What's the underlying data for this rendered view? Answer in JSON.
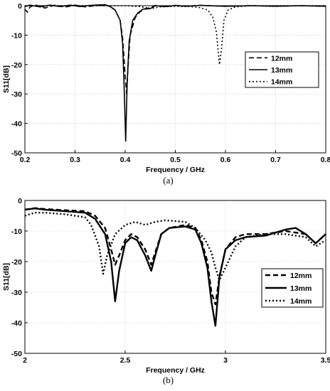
{
  "chart_data": [
    {
      "type": "line",
      "caption": "(a)",
      "xlabel": "Frequency / GHz",
      "ylabel": "S11[dB]",
      "xlim": [
        0.2,
        0.8
      ],
      "ylim": [
        -50,
        0
      ],
      "xticks": [
        0.2,
        0.3,
        0.4,
        0.5,
        0.6,
        0.7,
        0.8
      ],
      "yticks": [
        -50,
        -40,
        -30,
        -20,
        -10,
        0
      ],
      "xticklabels": [
        "0.2",
        "0.3",
        "0.4",
        "0.5",
        "0.6",
        "0.7",
        "0.8"
      ],
      "yticklabels": [
        "-50",
        "-40",
        "-30",
        "-20",
        "-10",
        "0"
      ],
      "grid": true,
      "legend": "right",
      "series": [
        {
          "name": "12mm",
          "style": "dashed",
          "points": [
            [
              0.2,
              -1.2
            ],
            [
              0.205,
              -2.2
            ],
            [
              0.21,
              -0.5
            ],
            [
              0.22,
              0.3
            ],
            [
              0.24,
              -0.8
            ],
            [
              0.26,
              0.2
            ],
            [
              0.28,
              -0.5
            ],
            [
              0.3,
              0.2
            ],
            [
              0.32,
              -0.4
            ],
            [
              0.34,
              0.0
            ],
            [
              0.36,
              0.3
            ],
            [
              0.37,
              -0.2
            ],
            [
              0.38,
              -1.5
            ],
            [
              0.39,
              -5
            ],
            [
              0.395,
              -11
            ],
            [
              0.4,
              -24
            ],
            [
              0.403,
              -30
            ],
            [
              0.406,
              -20
            ],
            [
              0.41,
              -10
            ],
            [
              0.42,
              -4
            ],
            [
              0.43,
              -2
            ],
            [
              0.44,
              -1
            ],
            [
              0.45,
              -0.7
            ],
            [
              0.46,
              0.1
            ],
            [
              0.48,
              -0.4
            ],
            [
              0.5,
              0.1
            ],
            [
              0.52,
              -0.2
            ],
            [
              0.55,
              0.1
            ],
            [
              0.6,
              -0.2
            ],
            [
              0.65,
              0.0
            ],
            [
              0.7,
              -0.2
            ],
            [
              0.75,
              0.0
            ],
            [
              0.8,
              -0.2
            ]
          ]
        },
        {
          "name": "13mm",
          "style": "solid",
          "points": [
            [
              0.2,
              -0.3
            ],
            [
              0.21,
              0.2
            ],
            [
              0.23,
              -0.4
            ],
            [
              0.25,
              0.2
            ],
            [
              0.27,
              -0.3
            ],
            [
              0.29,
              0.2
            ],
            [
              0.31,
              -0.3
            ],
            [
              0.33,
              0.1
            ],
            [
              0.35,
              0.3
            ],
            [
              0.36,
              0.3
            ],
            [
              0.37,
              -0.3
            ],
            [
              0.38,
              -1.5
            ],
            [
              0.39,
              -5
            ],
            [
              0.395,
              -13
            ],
            [
              0.398,
              -28
            ],
            [
              0.401,
              -46
            ],
            [
              0.404,
              -26
            ],
            [
              0.408,
              -12
            ],
            [
              0.415,
              -5
            ],
            [
              0.425,
              -2.5
            ],
            [
              0.435,
              -1.2
            ],
            [
              0.45,
              -1.0
            ],
            [
              0.46,
              0.0
            ],
            [
              0.48,
              -0.3
            ],
            [
              0.5,
              0.1
            ],
            [
              0.52,
              -0.2
            ],
            [
              0.55,
              0.1
            ],
            [
              0.6,
              -0.2
            ],
            [
              0.65,
              0.0
            ],
            [
              0.7,
              -0.2
            ],
            [
              0.75,
              0.0
            ],
            [
              0.8,
              -0.2
            ]
          ]
        },
        {
          "name": "14mm",
          "style": "dotted",
          "points": [
            [
              0.2,
              0.0
            ],
            [
              0.25,
              0.0
            ],
            [
              0.3,
              0.0
            ],
            [
              0.35,
              0.0
            ],
            [
              0.4,
              0.0
            ],
            [
              0.43,
              -0.3
            ],
            [
              0.45,
              -1.0
            ],
            [
              0.47,
              -0.4
            ],
            [
              0.5,
              -0.2
            ],
            [
              0.53,
              -0.3
            ],
            [
              0.55,
              -0.7
            ],
            [
              0.565,
              -1.5
            ],
            [
              0.575,
              -4
            ],
            [
              0.582,
              -9
            ],
            [
              0.588,
              -20
            ],
            [
              0.592,
              -15
            ],
            [
              0.597,
              -5
            ],
            [
              0.605,
              -1.5
            ],
            [
              0.62,
              -0.4
            ],
            [
              0.65,
              0.0
            ],
            [
              0.7,
              0.0
            ],
            [
              0.75,
              0.0
            ],
            [
              0.8,
              0.0
            ]
          ]
        }
      ]
    },
    {
      "type": "line",
      "caption": "(b)",
      "xlabel": "Frequency / GHz",
      "ylabel": "S11[dB]",
      "xlim": [
        2,
        3.5
      ],
      "ylim": [
        -50,
        0
      ],
      "xticks": [
        2,
        2.5,
        3,
        3.5
      ],
      "yticks": [
        -50,
        -40,
        -30,
        -20,
        -10,
        0
      ],
      "xticklabels": [
        "2",
        "2.5",
        "3",
        "3.5"
      ],
      "yticklabels": [
        "-50",
        "-40",
        "-30",
        "-20",
        "-10",
        "0"
      ],
      "grid": true,
      "legend": "bottom-right",
      "series": [
        {
          "name": "12mm",
          "style": "dashed",
          "points": [
            [
              2.0,
              -3
            ],
            [
              2.05,
              -2.5
            ],
            [
              2.1,
              -2.8
            ],
            [
              2.2,
              -3.2
            ],
            [
              2.3,
              -3.5
            ],
            [
              2.35,
              -5
            ],
            [
              2.4,
              -9
            ],
            [
              2.43,
              -16
            ],
            [
              2.45,
              -21
            ],
            [
              2.47,
              -18
            ],
            [
              2.5,
              -13
            ],
            [
              2.53,
              -11
            ],
            [
              2.56,
              -12
            ],
            [
              2.6,
              -16
            ],
            [
              2.63,
              -21
            ],
            [
              2.65,
              -17
            ],
            [
              2.68,
              -11
            ],
            [
              2.72,
              -9
            ],
            [
              2.8,
              -8
            ],
            [
              2.85,
              -9
            ],
            [
              2.88,
              -13
            ],
            [
              2.91,
              -20
            ],
            [
              2.93,
              -30
            ],
            [
              2.95,
              -34
            ],
            [
              2.97,
              -25
            ],
            [
              3.0,
              -16
            ],
            [
              3.05,
              -12
            ],
            [
              3.1,
              -11
            ],
            [
              3.2,
              -11
            ],
            [
              3.3,
              -10
            ],
            [
              3.4,
              -11
            ],
            [
              3.45,
              -14
            ],
            [
              3.5,
              -11
            ]
          ]
        },
        {
          "name": "13mm",
          "style": "solid",
          "points": [
            [
              2.0,
              -3
            ],
            [
              2.05,
              -2.6
            ],
            [
              2.1,
              -3
            ],
            [
              2.2,
              -3.5
            ],
            [
              2.3,
              -4
            ],
            [
              2.35,
              -6
            ],
            [
              2.4,
              -11
            ],
            [
              2.43,
              -20
            ],
            [
              2.45,
              -33
            ],
            [
              2.47,
              -23
            ],
            [
              2.5,
              -14
            ],
            [
              2.53,
              -12
            ],
            [
              2.56,
              -13
            ],
            [
              2.6,
              -18
            ],
            [
              2.63,
              -23
            ],
            [
              2.65,
              -18
            ],
            [
              2.68,
              -11
            ],
            [
              2.72,
              -9
            ],
            [
              2.8,
              -8.5
            ],
            [
              2.85,
              -9.5
            ],
            [
              2.88,
              -14
            ],
            [
              2.91,
              -22
            ],
            [
              2.93,
              -33
            ],
            [
              2.95,
              -41
            ],
            [
              2.97,
              -25
            ],
            [
              3.0,
              -16
            ],
            [
              3.05,
              -13
            ],
            [
              3.1,
              -12
            ],
            [
              3.2,
              -11.5
            ],
            [
              3.3,
              -9.5
            ],
            [
              3.35,
              -9
            ],
            [
              3.4,
              -11
            ],
            [
              3.45,
              -14
            ],
            [
              3.5,
              -11
            ]
          ]
        },
        {
          "name": "14mm",
          "style": "dotted",
          "points": [
            [
              2.0,
              -5
            ],
            [
              2.05,
              -4
            ],
            [
              2.1,
              -4
            ],
            [
              2.2,
              -4.5
            ],
            [
              2.3,
              -5.5
            ],
            [
              2.33,
              -8
            ],
            [
              2.37,
              -15
            ],
            [
              2.39,
              -24
            ],
            [
              2.41,
              -18
            ],
            [
              2.45,
              -11
            ],
            [
              2.5,
              -8
            ],
            [
              2.55,
              -7
            ],
            [
              2.6,
              -8
            ],
            [
              2.65,
              -7
            ],
            [
              2.7,
              -6.5
            ],
            [
              2.8,
              -7
            ],
            [
              2.85,
              -9
            ],
            [
              2.9,
              -13
            ],
            [
              2.93,
              -17
            ],
            [
              2.95,
              -22
            ],
            [
              2.97,
              -26
            ],
            [
              3.0,
              -22
            ],
            [
              3.05,
              -15
            ],
            [
              3.1,
              -12
            ],
            [
              3.2,
              -11
            ],
            [
              3.3,
              -11
            ],
            [
              3.4,
              -12
            ],
            [
              3.45,
              -15
            ],
            [
              3.5,
              -13
            ]
          ]
        }
      ]
    }
  ]
}
